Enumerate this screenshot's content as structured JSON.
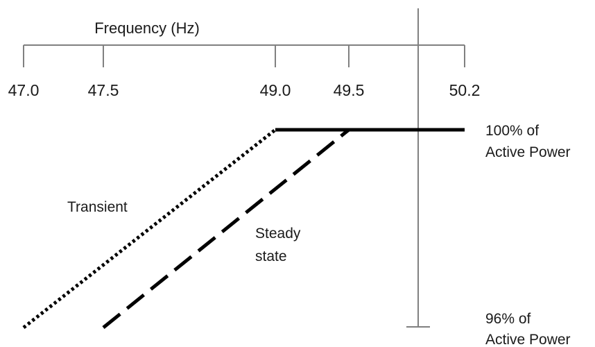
{
  "chart_data": {
    "type": "line",
    "title": "",
    "xlabel": "Frequency (Hz)",
    "ylabel": "",
    "xticks": [
      "47.0",
      "47.5",
      "49.0",
      "49.5",
      "50.2"
    ],
    "xlim": [
      47.0,
      50.2
    ],
    "ylim": [
      96,
      100
    ],
    "grid": false,
    "y_labels": {
      "top": [
        "100% of",
        "Active Power"
      ],
      "bottom": [
        "96% of",
        "Active Power"
      ]
    },
    "series": [
      {
        "name": "Transient",
        "style": "dotted",
        "color": "#000000",
        "x": [
          47.0,
          49.0
        ],
        "y": [
          96,
          100
        ]
      },
      {
        "name": "Steady state",
        "style": "dashed",
        "color": "#000000",
        "x": [
          47.5,
          49.5
        ],
        "y": [
          96,
          100
        ]
      },
      {
        "name": "",
        "style": "solid",
        "color": "#000000",
        "x": [
          49.0,
          50.2
        ],
        "y": [
          100,
          100
        ]
      }
    ],
    "annotations": [
      {
        "lines": [
          "Transient"
        ]
      },
      {
        "lines": [
          "Steady",
          "state"
        ]
      }
    ]
  }
}
